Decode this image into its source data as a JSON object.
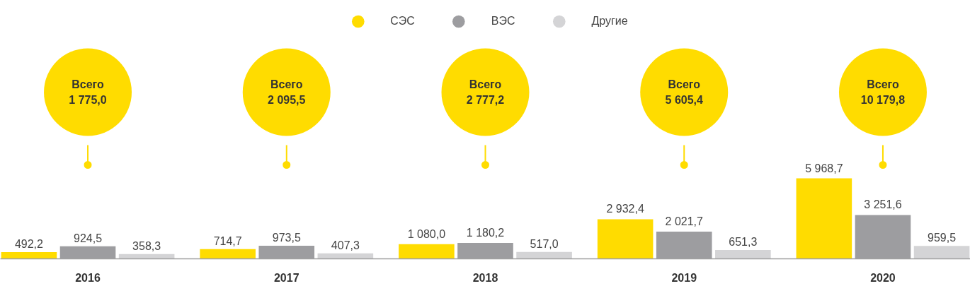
{
  "chart_data": {
    "type": "bar",
    "categories": [
      "2016",
      "2017",
      "2018",
      "2019",
      "2020"
    ],
    "series": [
      {
        "name": "СЭС",
        "color": "#ffdc00",
        "values": [
          492.2,
          714.7,
          1080.0,
          2932.4,
          5968.7
        ],
        "value_labels": [
          "492,2",
          "714,7",
          "1 080,0",
          "2 932,4",
          "5 968,7"
        ]
      },
      {
        "name": "ВЭС",
        "color": "#9d9da0",
        "values": [
          924.5,
          973.5,
          1180.2,
          2021.7,
          3251.6
        ],
        "value_labels": [
          "924,5",
          "973,5",
          "1 180,2",
          "2 021,7",
          "3 251,6"
        ]
      },
      {
        "name": "Другие",
        "color": "#d4d4d6",
        "values": [
          358.3,
          407.3,
          517.0,
          651.3,
          959.5
        ],
        "value_labels": [
          "358,3",
          "407,3",
          "517,0",
          "651,3",
          "959,5"
        ]
      }
    ],
    "annotations": [
      "Всего\n1 775,0",
      "Всего\n2 095,5",
      "Всего\n2 777,2",
      "Всего\n5 605,4",
      "Всего\n10 179,8"
    ],
    "legend": "top",
    "grid": false
  }
}
